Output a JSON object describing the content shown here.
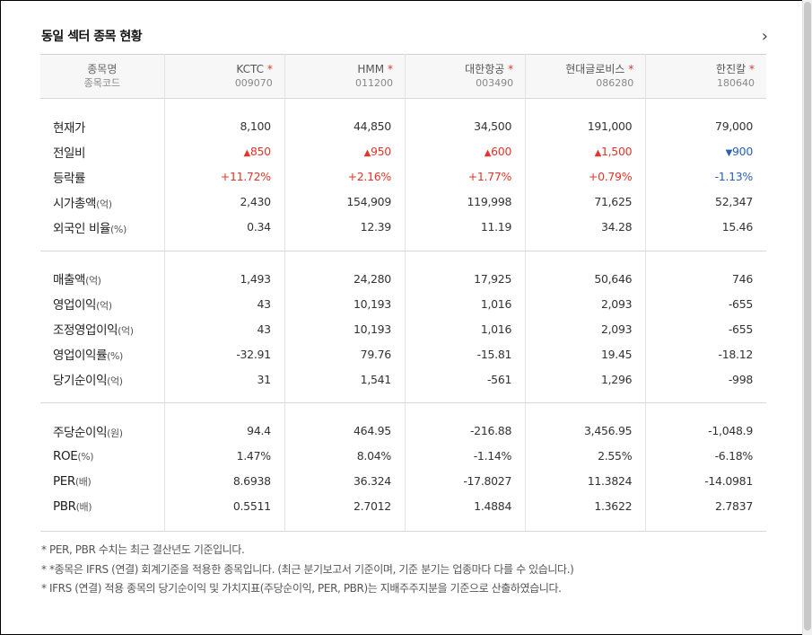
{
  "section": {
    "title": "동일 섹터 종목 현황",
    "more_icon": "chevron-right-icon"
  },
  "header": {
    "name_label": "종목명",
    "code_label": "종목코드"
  },
  "companies": [
    {
      "name": "KCTC",
      "code": "009070"
    },
    {
      "name": "HMM",
      "code": "011200"
    },
    {
      "name": "대한항공",
      "code": "003490"
    },
    {
      "name": "현대글로비스",
      "code": "086280"
    },
    {
      "name": "한진칼",
      "code": "180640"
    }
  ],
  "star": "*",
  "rows": {
    "price": {
      "label": "현재가",
      "unit": "",
      "values": [
        "8,100",
        "44,850",
        "34,500",
        "191,000",
        "79,000"
      ]
    },
    "change": {
      "label": "전일비",
      "unit": "",
      "values": [
        "850",
        "950",
        "600",
        "1,500",
        "900"
      ],
      "arrows": [
        "▲",
        "▲",
        "▲",
        "▲",
        "▼"
      ],
      "dirs": [
        "up",
        "up",
        "up",
        "up",
        "down"
      ]
    },
    "rate": {
      "label": "등락률",
      "unit": "",
      "values": [
        "+11.72%",
        "+2.16%",
        "+1.77%",
        "+0.79%",
        "-1.13%"
      ],
      "dirs": [
        "up",
        "up",
        "up",
        "up",
        "down"
      ]
    },
    "mcap": {
      "label": "시가총액",
      "unit": "(억)",
      "values": [
        "2,430",
        "154,909",
        "119,998",
        "71,625",
        "52,347"
      ]
    },
    "foreign": {
      "label": "외국인 비율",
      "unit": "(%)",
      "values": [
        "0.34",
        "12.39",
        "11.19",
        "34.28",
        "15.46"
      ]
    },
    "sales": {
      "label": "매출액",
      "unit": "(억)",
      "values": [
        "1,493",
        "24,280",
        "17,925",
        "50,646",
        "746"
      ]
    },
    "op": {
      "label": "영업이익",
      "unit": "(억)",
      "values": [
        "43",
        "10,193",
        "1,016",
        "2,093",
        "-655"
      ]
    },
    "adj_op": {
      "label": "조정영업이익",
      "unit": "(억)",
      "values": [
        "43",
        "10,193",
        "1,016",
        "2,093",
        "-655"
      ]
    },
    "op_margin": {
      "label": "영업이익률",
      "unit": "(%)",
      "values": [
        "-32.91",
        "79.76",
        "-15.81",
        "19.45",
        "-18.12"
      ]
    },
    "net": {
      "label": "당기순이익",
      "unit": "(억)",
      "values": [
        "31",
        "1,541",
        "-561",
        "1,296",
        "-998"
      ]
    },
    "eps": {
      "label": "주당순이익",
      "unit": "(원)",
      "values": [
        "94.4",
        "464.95",
        "-216.88",
        "3,456.95",
        "-1,048.9"
      ]
    },
    "roe": {
      "label": "ROE",
      "unit": "(%)",
      "values": [
        "1.47%",
        "8.04%",
        "-1.14%",
        "2.55%",
        "-6.18%"
      ]
    },
    "per": {
      "label": "PER",
      "unit": "(배)",
      "values": [
        "8.6938",
        "36.324",
        "-17.8027",
        "11.3824",
        "-14.0981"
      ]
    },
    "pbr": {
      "label": "PBR",
      "unit": "(배)",
      "values": [
        "0.5511",
        "2.7012",
        "1.4884",
        "1.3622",
        "2.7837"
      ]
    }
  },
  "notes": [
    "* PER, PBR 수치는 최근 결산년도 기준입니다.",
    "* *종목은 IFRS (연결) 회계기준을 적용한 종목입니다. (최근 분기보고서 기준이며, 기준 분기는 업종마다 다를 수 있습니다.)",
    "* IFRS (연결) 적용 종목의 당기순이익 및 가치지표(주당순이익, PER, PBR)는 지배주주지분을 기준으로 산출하였습니다."
  ],
  "colors": {
    "up": "#e0362c",
    "down": "#2a5fb8"
  }
}
